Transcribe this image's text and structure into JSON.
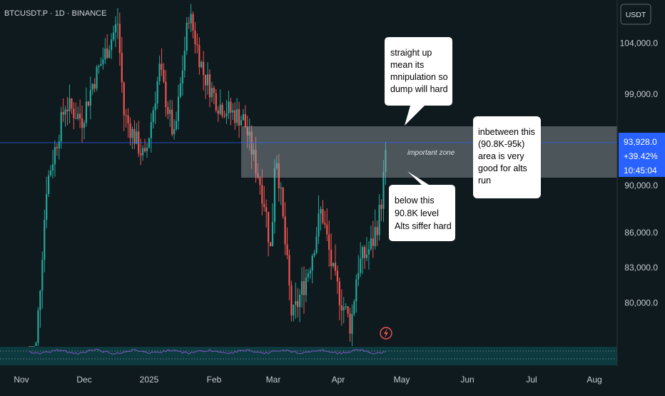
{
  "header": {
    "symbol": "BTCUSDT.P · 1D · BINANCE"
  },
  "price_axis": {
    "currency": "USDT",
    "ticks": [
      {
        "label": "104,000.0",
        "value": 104000
      },
      {
        "label": "99,000.0",
        "value": 99000
      },
      {
        "label": "90,000.0",
        "value": 90000
      },
      {
        "label": "86,000.0",
        "value": 86000
      },
      {
        "label": "83,000.0",
        "value": 83000
      },
      {
        "label": "80,000.0",
        "value": 80000
      }
    ],
    "current_price_label": "93,928.0",
    "current_change_label": "+39.42%",
    "countdown_label": "10:45:04"
  },
  "time_axis": {
    "labels": [
      "Nov",
      "Dec",
      "2025",
      "Feb",
      "Mar",
      "Apr",
      "May",
      "Jun",
      "Jul",
      "Aug"
    ]
  },
  "annotations": {
    "callout_top": [
      "straight up",
      "mean its",
      "mnipulation so",
      "dump will hard"
    ],
    "callout_zone": [
      "inbetween this",
      "(90.8K-95k)",
      "area is very",
      "good for alts",
      "run"
    ],
    "callout_bottom": [
      "below this",
      "90.8K level",
      "Alts siffer hard"
    ],
    "zone_label": "important zone"
  },
  "colors": {
    "background": "#0f1a1e",
    "bull": "#26a69a",
    "bear": "#ef5350",
    "zone": "#9fa8ad",
    "price_line": "#2962ff",
    "price_badge": "#2962ff",
    "rsi_line": "#7e57c2",
    "axis_text": "#c7cbd1",
    "callout_bg": "#ffffff",
    "callout_text": "#000000"
  },
  "icons": {
    "marker": "lightning-icon"
  },
  "chart_data": {
    "type": "candlestick",
    "symbol": "BTCUSDT.P",
    "interval": "1D",
    "exchange": "BINANCE",
    "x_range": [
      "Nov",
      "Aug"
    ],
    "y_range": [
      77000,
      107000
    ],
    "zone": {
      "low": 90800,
      "high": 95000,
      "label": "important zone"
    },
    "current_price": 93928,
    "anchors": [
      {
        "date": "Nov 05",
        "close": 68000
      },
      {
        "date": "Nov 13",
        "close": 90000
      },
      {
        "date": "Nov 22",
        "close": 98000
      },
      {
        "date": "Nov 30",
        "close": 96500
      },
      {
        "date": "Dec 05",
        "close": 100000
      },
      {
        "date": "Dec 17",
        "close": 106000
      },
      {
        "date": "Dec 20",
        "close": 97000
      },
      {
        "date": "Dec 30",
        "close": 92500
      },
      {
        "date": "Jan 06",
        "close": 101500
      },
      {
        "date": "Jan 13",
        "close": 94500
      },
      {
        "date": "Jan 20",
        "close": 107000
      },
      {
        "date": "Jan 27",
        "close": 101000
      },
      {
        "date": "Feb 03",
        "close": 98000
      },
      {
        "date": "Feb 15",
        "close": 96500
      },
      {
        "date": "Feb 25",
        "close": 88500
      },
      {
        "date": "Feb 28",
        "close": 84000
      },
      {
        "date": "Mar 02",
        "close": 94000
      },
      {
        "date": "Mar 10",
        "close": 78500
      },
      {
        "date": "Mar 18",
        "close": 83000
      },
      {
        "date": "Mar 24",
        "close": 88000
      },
      {
        "date": "Mar 30",
        "close": 82000
      },
      {
        "date": "Apr 07",
        "close": 78000
      },
      {
        "date": "Apr 10",
        "close": 83000
      },
      {
        "date": "Apr 17",
        "close": 85000
      },
      {
        "date": "Apr 21",
        "close": 88000
      },
      {
        "date": "Apr 24",
        "close": 93928
      }
    ]
  }
}
